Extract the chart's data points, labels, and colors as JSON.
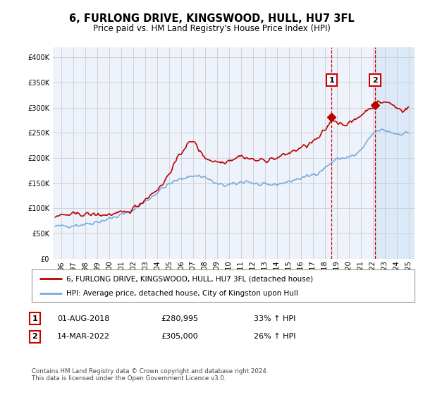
{
  "title": "6, FURLONG DRIVE, KINGSWOOD, HULL, HU7 3FL",
  "subtitle": "Price paid vs. HM Land Registry's House Price Index (HPI)",
  "legend_line1": "6, FURLONG DRIVE, KINGSWOOD, HULL, HU7 3FL (detached house)",
  "legend_line2": "HPI: Average price, detached house, City of Kingston upon Hull",
  "annotation1": {
    "label": "1",
    "date": "01-AUG-2018",
    "price": "£280,995",
    "pct": "33% ↑ HPI"
  },
  "annotation2": {
    "label": "2",
    "date": "14-MAR-2022",
    "price": "£305,000",
    "pct": "26% ↑ HPI"
  },
  "footer": "Contains HM Land Registry data © Crown copyright and database right 2024.\nThis data is licensed under the Open Government Licence v3.0.",
  "hpi_color": "#7aaadd",
  "price_color": "#bb0000",
  "annotation_color": "#cc0000",
  "background_plot": "#eef3fb",
  "background_fig": "#ffffff",
  "ylim": [
    0,
    420000
  ],
  "yticks": [
    0,
    50000,
    100000,
    150000,
    200000,
    250000,
    300000,
    350000,
    400000
  ],
  "sale1_x": 2018.58,
  "sale1_y": 280995,
  "sale2_x": 2022.2,
  "sale2_y": 305000,
  "vline1_x": 2018.58,
  "vline2_x": 2022.2,
  "shade_start": 2022.2,
  "shade_end": 2025.5,
  "xlim_start": 1995.3,
  "xlim_end": 2025.5
}
